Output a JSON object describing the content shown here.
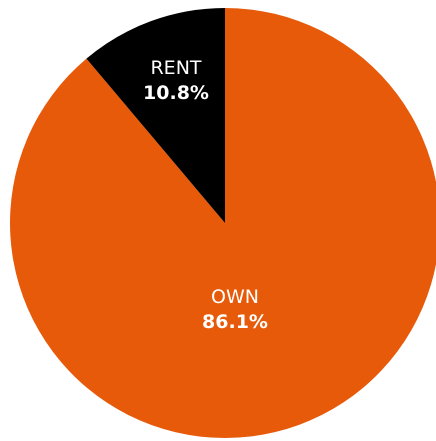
{
  "chart_data": {
    "type": "pie",
    "start_angle_deg": 0,
    "direction": "clockwise",
    "slices": [
      {
        "label": "OWN",
        "display_value": "86.1%",
        "value": 86.1,
        "color": "#e65a0a"
      },
      {
        "label": "RENT",
        "display_value": "10.8%",
        "value": 10.8,
        "color": "#000000"
      }
    ],
    "legend": "none"
  }
}
